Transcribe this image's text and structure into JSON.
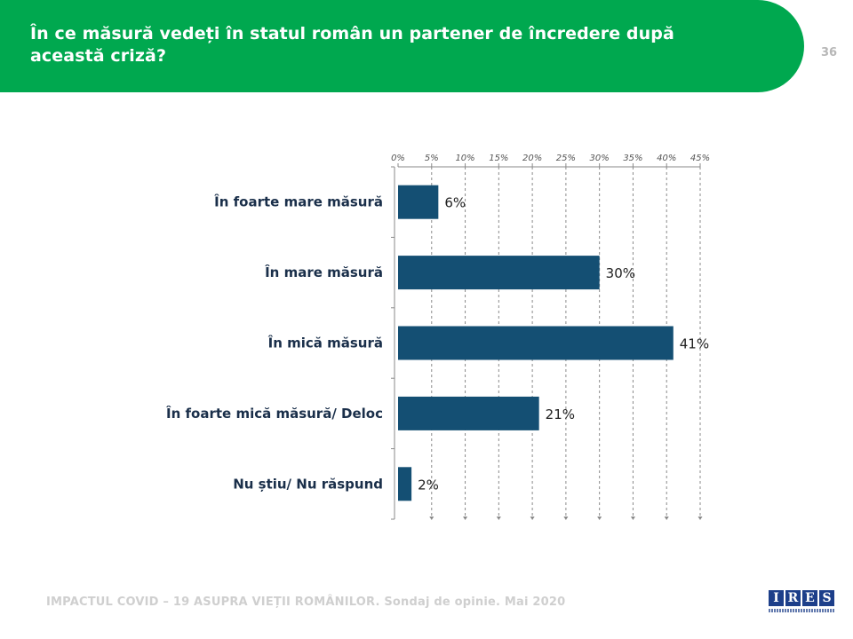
{
  "slide": {
    "title": "În ce măsură vedeți în statul român un partener de încredere după această criză?",
    "page_number": "36",
    "footer": "IMPACTUL COVID – 19 ASUPRA VIEȚII ROMÂNILOR. Sondaj de opinie. Mai 2020",
    "logo_letters": [
      "I",
      "R",
      "E",
      "S"
    ]
  },
  "colors": {
    "header": "#00a84f",
    "bar": "#144f73",
    "grid": "#8a8a8a",
    "label": "#1a2f4a"
  },
  "chart_data": {
    "type": "bar",
    "orientation": "horizontal",
    "categories": [
      "În foarte mare măsură",
      "În mare măsură",
      "În mică măsură",
      "În foarte mică măsură/ Deloc",
      "Nu știu/ Nu răspund"
    ],
    "values": [
      6,
      30,
      41,
      21,
      2
    ],
    "value_labels": [
      "6%",
      "30%",
      "41%",
      "21%",
      "2%"
    ],
    "xlim": [
      0,
      45
    ],
    "xticks": [
      0,
      5,
      10,
      15,
      20,
      25,
      30,
      35,
      40,
      45
    ],
    "xtick_labels": [
      "0%",
      "5%",
      "10%",
      "15%",
      "20%",
      "25%",
      "30%",
      "35%",
      "40%",
      "45%"
    ],
    "axis_position": "top",
    "grid": true,
    "grid_style": "dashed",
    "legend": false
  }
}
